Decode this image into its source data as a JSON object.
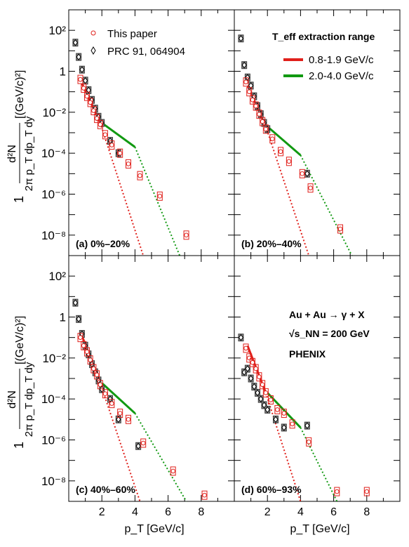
{
  "y_axis_label": {
    "num": "d²N",
    "den": "2π p_T dp_T dy",
    "unit": "[(GeV/c)²]",
    "one": "1"
  },
  "x_axis_label": "p_T [GeV/c]",
  "y_tick_labels": [
    "10²",
    "1",
    "10⁻²",
    "10⁻⁴",
    "10⁻⁶",
    "10⁻⁸"
  ],
  "x_tick_labels": [
    "2",
    "4",
    "6",
    "8"
  ],
  "legend_left": [
    {
      "marker": "open-circle",
      "color": "#e0201b",
      "label": "This paper"
    },
    {
      "marker": "open-diamond",
      "color": "#000000",
      "label": "PRC 91, 064904"
    }
  ],
  "legend_right": {
    "title": "T_eff extraction range",
    "entries": [
      {
        "label": "0.8-1.9 GeV/c",
        "color": "#e0201b"
      },
      {
        "label": "2.0-4.0 GeV/c",
        "color": "#119911"
      }
    ]
  },
  "annotation": {
    "line1": "Au + Au → γ + X",
    "line2": "√s_NN = 200 GeV",
    "line3": "PHENIX"
  },
  "chart_data": [
    {
      "type": "scatter",
      "panel_label": "(a) 0%–20%",
      "xlim": [
        0,
        10
      ],
      "ylim": [
        1e-09,
        1000
      ],
      "yscale": "log",
      "series": [
        {
          "name": "This paper",
          "x": [
            0.7,
            0.9,
            1.1,
            1.3,
            1.5,
            1.7,
            1.9,
            2.2,
            2.6,
            3.1,
            3.6,
            4.3,
            5.5,
            7.1
          ],
          "y": [
            0.4,
            0.15,
            0.06,
            0.03,
            0.012,
            0.005,
            0.0025,
            0.0008,
            0.00025,
            0.0001,
            3e-05,
            8e-06,
            8e-07,
            1e-08
          ]
        },
        {
          "name": "PRC 91, 064904",
          "x": [
            0.4,
            0.6,
            0.8,
            1.0,
            1.2,
            1.4,
            1.6,
            1.8,
            2.0,
            2.5,
            3.0
          ],
          "y": [
            25,
            5,
            1.2,
            0.35,
            0.12,
            0.04,
            0.015,
            0.006,
            0.003,
            0.0004,
            0.0001
          ]
        }
      ],
      "fits": [
        {
          "color": "#e0201b",
          "x": [
            0.8,
            1.9
          ],
          "y": [
            0.25,
            0.003
          ],
          "extrapolate_to": [
            4.5,
            1e-09
          ]
        },
        {
          "color": "#119911",
          "x": [
            2.0,
            4.0
          ],
          "y": [
            0.003,
            0.0002
          ],
          "extrapolate_to": [
            6.7,
            1e-09
          ]
        }
      ]
    },
    {
      "type": "scatter",
      "panel_label": "(b) 20%–40%",
      "xlim": [
        0,
        10
      ],
      "ylim": [
        1e-09,
        1000
      ],
      "yscale": "log",
      "series": [
        {
          "name": "This paper",
          "x": [
            0.7,
            0.9,
            1.1,
            1.3,
            1.5,
            1.7,
            1.9,
            2.3,
            2.8,
            3.3,
            4.1,
            4.6,
            6.4
          ],
          "y": [
            0.3,
            0.1,
            0.04,
            0.02,
            0.008,
            0.0035,
            0.0015,
            0.0005,
            0.00012,
            4e-05,
            1e-05,
            2e-06,
            2e-08
          ]
        },
        {
          "name": "PRC 91, 064904",
          "x": [
            0.4,
            0.6,
            0.8,
            1.0,
            1.2,
            1.4,
            1.6,
            1.8,
            2.0,
            4.4
          ],
          "y": [
            40,
            2,
            0.5,
            0.2,
            0.06,
            0.02,
            0.008,
            0.003,
            0.0015,
            1e-05
          ]
        }
      ],
      "fits": [
        {
          "color": "#e0201b",
          "x": [
            0.8,
            1.9
          ],
          "y": [
            0.2,
            0.002
          ],
          "extrapolate_to": [
            4.5,
            1e-09
          ]
        },
        {
          "color": "#119911",
          "x": [
            2.0,
            4.0
          ],
          "y": [
            0.002,
            8e-05
          ],
          "extrapolate_to": [
            7.1,
            1e-09
          ]
        }
      ]
    },
    {
      "type": "scatter",
      "panel_label": "(c) 40%–60%",
      "xlim": [
        0,
        10
      ],
      "ylim": [
        1e-09,
        1000
      ],
      "yscale": "log",
      "series": [
        {
          "name": "This paper",
          "x": [
            0.7,
            0.9,
            1.1,
            1.3,
            1.5,
            1.7,
            1.9,
            2.2,
            2.6,
            3.1,
            3.6,
            4.5,
            6.3,
            8.2
          ],
          "y": [
            0.1,
            0.04,
            0.02,
            0.008,
            0.003,
            0.0015,
            0.0005,
            0.00018,
            6e-05,
            2e-05,
            1e-05,
            7e-07,
            3e-08,
            2e-09
          ]
        },
        {
          "name": "PRC 91, 064904",
          "x": [
            0.4,
            0.6,
            0.8,
            1.0,
            1.2,
            1.4,
            1.6,
            1.8,
            2.0,
            2.5,
            3.0,
            4.2
          ],
          "y": [
            5,
            0.8,
            0.15,
            0.04,
            0.015,
            0.005,
            0.002,
            0.0008,
            0.0003,
            0.0001,
            1e-05,
            5e-07
          ]
        }
      ],
      "fits": [
        {
          "color": "#e0201b",
          "x": [
            0.8,
            1.9
          ],
          "y": [
            0.12,
            0.0006
          ],
          "extrapolate_to": [
            4.3,
            1e-09
          ]
        },
        {
          "color": "#119911",
          "x": [
            2.0,
            4.0
          ],
          "y": [
            0.0006,
            2e-05
          ],
          "extrapolate_to": [
            7.1,
            1e-09
          ]
        }
      ]
    },
    {
      "type": "scatter",
      "panel_label": "(d) 60%–93%",
      "xlim": [
        0,
        10
      ],
      "ylim": [
        1e-09,
        1000
      ],
      "yscale": "log",
      "series": [
        {
          "name": "This paper",
          "x": [
            0.7,
            0.9,
            1.1,
            1.3,
            1.5,
            1.7,
            1.9,
            2.2,
            2.6,
            3.0,
            3.5,
            4.5,
            6.2,
            8.0
          ],
          "y": [
            0.03,
            0.01,
            0.006,
            0.003,
            0.0012,
            0.0005,
            0.0002,
            9e-05,
            3e-05,
            2e-05,
            6e-06,
            8e-07,
            3e-09,
            3e-09
          ]
        },
        {
          "name": "PRC 91, 064904",
          "x": [
            0.4,
            0.6,
            0.8,
            1.0,
            1.2,
            1.4,
            1.6,
            1.8,
            2.0,
            2.5,
            3.0,
            4.4
          ],
          "y": [
            0.1,
            0.002,
            0.003,
            0.001,
            0.0004,
            0.0002,
            0.0001,
            5e-05,
            3e-05,
            1e-05,
            4e-06,
            5e-06
          ]
        }
      ],
      "fits": [
        {
          "color": "#e0201b",
          "x": [
            0.8,
            1.9
          ],
          "y": [
            0.04,
            0.0002
          ],
          "extrapolate_to": [
            4.0,
            1e-09
          ]
        },
        {
          "color": "#119911",
          "x": [
            2.0,
            4.0
          ],
          "y": [
            0.0002,
            4e-06
          ],
          "extrapolate_to": [
            6.2,
            1e-09
          ]
        }
      ]
    }
  ]
}
